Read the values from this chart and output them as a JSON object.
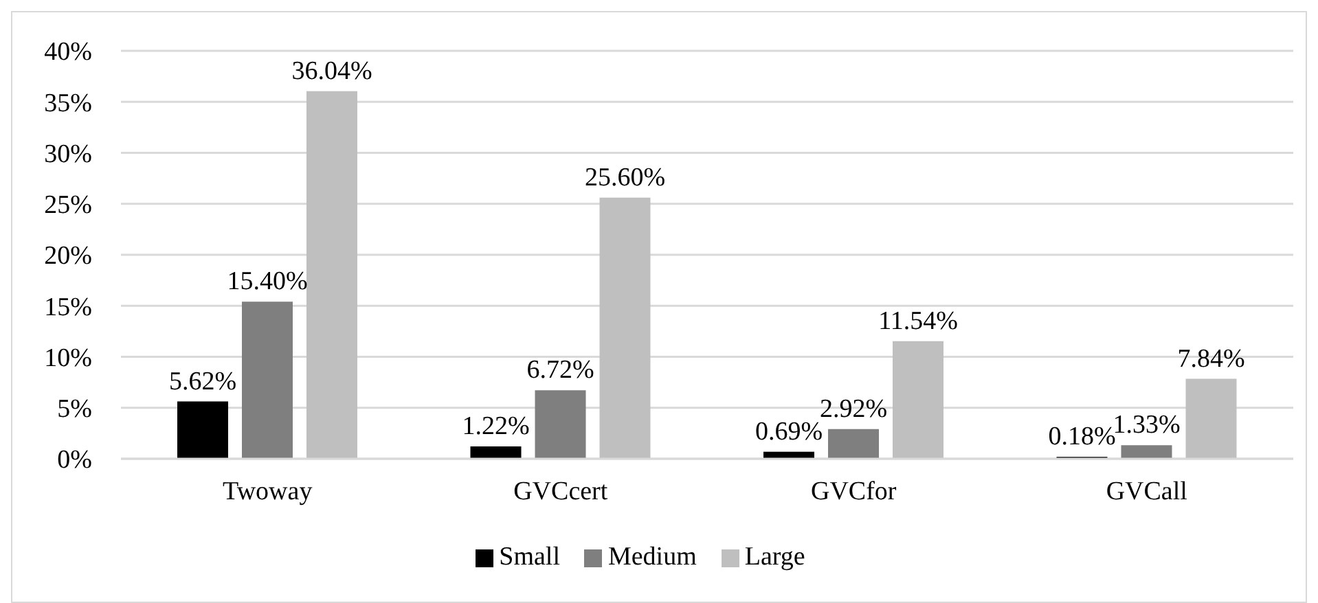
{
  "chart_data": {
    "type": "bar",
    "categories": [
      "Twoway",
      "GVCcert",
      "GVCfor",
      "GVCall"
    ],
    "series": [
      {
        "name": "Small",
        "color": "#000000",
        "values": [
          5.62,
          1.22,
          0.69,
          0.18
        ],
        "value_labels": [
          "5.62%",
          "1.22%",
          "0.69%",
          "0.18%"
        ]
      },
      {
        "name": "Medium",
        "color": "#7f7f7f",
        "values": [
          15.4,
          6.72,
          2.92,
          1.33
        ],
        "value_labels": [
          "15.40%",
          "6.72%",
          "2.92%",
          "1.33%"
        ]
      },
      {
        "name": "Large",
        "color": "#bfbfbf",
        "values": [
          36.04,
          25.6,
          11.54,
          7.84
        ],
        "value_labels": [
          "36.04%",
          "25.60%",
          "11.54%",
          "7.84%"
        ]
      }
    ],
    "ylim": [
      0,
      40
    ],
    "yticks": [
      {
        "value": 0,
        "label": "0%"
      },
      {
        "value": 5,
        "label": "5%"
      },
      {
        "value": 10,
        "label": "10%"
      },
      {
        "value": 15,
        "label": "15%"
      },
      {
        "value": 20,
        "label": "20%"
      },
      {
        "value": 25,
        "label": "25%"
      },
      {
        "value": 30,
        "label": "30%"
      },
      {
        "value": 35,
        "label": "35%"
      },
      {
        "value": 40,
        "label": "40%"
      }
    ],
    "grid": "y",
    "legend": "bottom"
  }
}
